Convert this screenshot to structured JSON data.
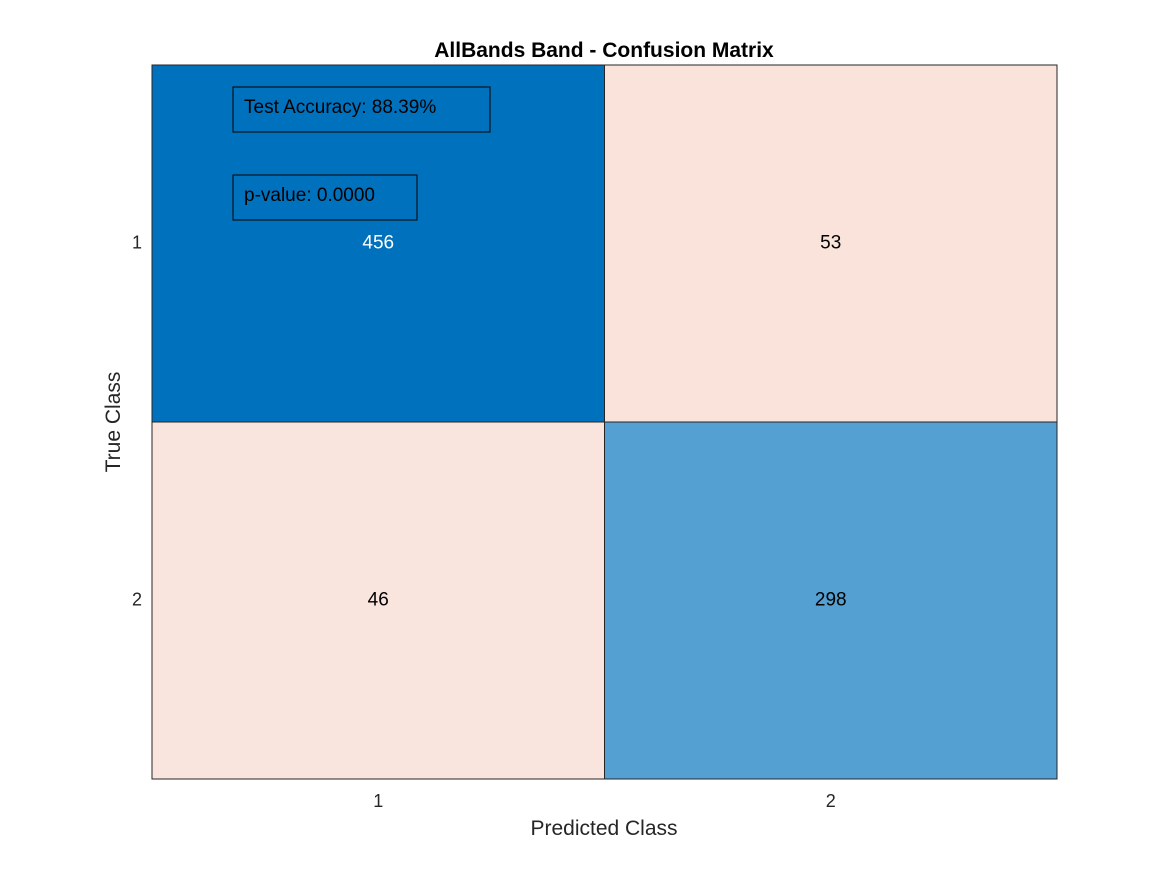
{
  "chart_data": {
    "type": "heatmap",
    "title": "AllBands Band - Confusion Matrix",
    "xlabel": "Predicted Class",
    "ylabel": "True Class",
    "x_categories": [
      "1",
      "2"
    ],
    "y_categories": [
      "1",
      "2"
    ],
    "values": [
      [
        456,
        53
      ],
      [
        46,
        298
      ]
    ],
    "cell_colors": [
      [
        "#0071BD",
        "#F9E3DB"
      ],
      [
        "#F9E5DD",
        "#54A0D3"
      ]
    ],
    "cell_text_colors": [
      [
        "#ffffff",
        "#000000"
      ],
      [
        "#000000",
        "#000000"
      ]
    ],
    "annotations": [
      {
        "text": "Test Accuracy: 88.39%"
      },
      {
        "text": "p-value: 0.0000"
      }
    ],
    "grid": false,
    "legend": "none"
  }
}
